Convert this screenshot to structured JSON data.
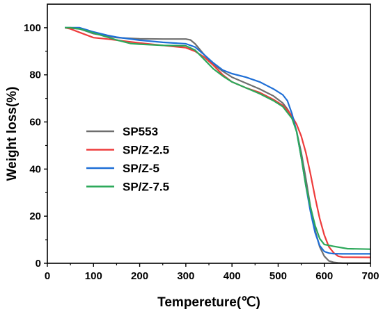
{
  "chart_data": {
    "type": "line",
    "title": "",
    "xlabel": "Tempereture(℃)",
    "ylabel": "Weight loss(%)",
    "xlim": [
      0,
      700
    ],
    "ylim": [
      0,
      110
    ],
    "xticks": [
      "0",
      "100",
      "200",
      "300",
      "400",
      "500",
      "600",
      "700"
    ],
    "yticks": [
      "0",
      "20",
      "40",
      "60",
      "80",
      "100"
    ],
    "xtick_values": [
      0,
      100,
      200,
      300,
      400,
      500,
      600,
      700
    ],
    "ytick_values": [
      0,
      20,
      40,
      60,
      80,
      100
    ],
    "grid": false,
    "legend_position": "center-left",
    "series": [
      {
        "name": "SP553",
        "color": "#6e6e6e",
        "x": [
          38,
          70,
          100,
          150,
          200,
          250,
          300,
          310,
          320,
          340,
          360,
          380,
          400,
          430,
          460,
          490,
          510,
          520,
          530,
          540,
          550,
          560,
          570,
          580,
          590,
          600,
          610,
          620,
          630,
          640,
          700
        ],
        "y": [
          100,
          99.5,
          97.5,
          95.8,
          95.3,
          95.2,
          95.2,
          94.8,
          93.2,
          88.5,
          84.5,
          81.5,
          79,
          76.5,
          74,
          71,
          68,
          65.5,
          62,
          56,
          47,
          36,
          24,
          14,
          7,
          3,
          1,
          0.4,
          0.2,
          0.1,
          0.1
        ]
      },
      {
        "name": "SP/Z-2.5",
        "color": "#ee3b3b",
        "x": [
          38,
          50,
          70,
          100,
          130,
          200,
          250,
          300,
          320,
          340,
          360,
          380,
          400,
          430,
          460,
          490,
          510,
          520,
          530,
          540,
          550,
          560,
          570,
          580,
          590,
          600,
          610,
          620,
          630,
          640,
          700
        ],
        "y": [
          100,
          99.5,
          98,
          95.8,
          95.2,
          93.5,
          92.5,
          91.5,
          90,
          87.5,
          84,
          80,
          77,
          74.5,
          72.5,
          69.5,
          67,
          65,
          62.5,
          59,
          54,
          47,
          38,
          28,
          19,
          12,
          7,
          4.5,
          3,
          2.6,
          2.5
        ]
      },
      {
        "name": "SP/Z-5",
        "color": "#1f6fd6",
        "x": [
          38,
          50,
          70,
          100,
          130,
          150,
          200,
          250,
          300,
          320,
          340,
          360,
          380,
          400,
          430,
          460,
          490,
          510,
          520,
          530,
          540,
          550,
          560,
          570,
          580,
          590,
          600,
          610,
          620,
          640,
          700
        ],
        "y": [
          100,
          100,
          100,
          98.2,
          96.8,
          96,
          94.7,
          93.8,
          93.2,
          91.8,
          88.5,
          85,
          82,
          80.5,
          79,
          77,
          74,
          71.5,
          69,
          63.5,
          56,
          45,
          33,
          22,
          13,
          7.5,
          5,
          4.3,
          4.1,
          4,
          4
        ]
      },
      {
        "name": "SP/Z-7.5",
        "color": "#2ca85a",
        "x": [
          38,
          50,
          70,
          100,
          130,
          150,
          180,
          200,
          250,
          300,
          320,
          340,
          360,
          380,
          400,
          430,
          460,
          490,
          510,
          520,
          530,
          540,
          550,
          560,
          570,
          580,
          590,
          600,
          620,
          650,
          700
        ],
        "y": [
          100,
          100,
          99.5,
          97.8,
          96,
          94.8,
          93.3,
          93,
          92.5,
          92.3,
          90.5,
          86.5,
          82.5,
          79.5,
          77,
          74.5,
          72,
          69,
          66.5,
          64,
          61.5,
          56,
          45,
          33,
          24,
          16,
          10.5,
          8,
          7.2,
          6.2,
          6
        ]
      }
    ]
  }
}
